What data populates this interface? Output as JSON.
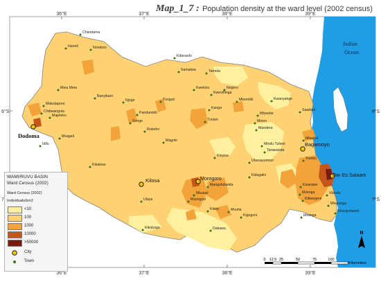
{
  "title": {
    "code": "Map_1_7 :",
    "text": "Population density at the ward level (2002 census)"
  },
  "ticks": {
    "lon_top": [
      "36°E",
      "37°E",
      "38°E",
      "39°E"
    ],
    "lon_bottom": [
      "36°E",
      "37°E",
      "38°E",
      "39°E"
    ],
    "lat_left": [
      "6°S",
      "7°S"
    ],
    "lat_right": [
      "6°S",
      "7°S"
    ]
  },
  "legend": {
    "basin": "WAMI/RUVU BASIN",
    "census": "Ward Census (2002)",
    "subtitle": "Ward Census (2002)",
    "unit": "Individuals/km2",
    "classes": [
      {
        "label": "<10",
        "color": "#fff0a0"
      },
      {
        "label": "100",
        "color": "#fed272"
      },
      {
        "label": "1000",
        "color": "#f2a43a"
      },
      {
        "label": "10000",
        "color": "#c4561a"
      },
      {
        "label": ">50000",
        "color": "#7a1a10"
      }
    ],
    "city_label": "City",
    "town_label": "Town"
  },
  "sea": {
    "line1": "Indian",
    "line2": "Ocean"
  },
  "scale": {
    "ticks": [
      "0",
      "12.5",
      "25",
      "50",
      "75",
      "100"
    ],
    "unit": "Kilometers"
  },
  "north_label": "N",
  "cities": [
    {
      "name": "Dodoma"
    },
    {
      "name": "Kilosa"
    },
    {
      "name": "Morogoro"
    },
    {
      "name": "Bagamoyo"
    },
    {
      "name": "Dar Es Salaam"
    }
  ],
  "towns": [
    {
      "name": "Chandama"
    },
    {
      "name": "Nondoto"
    },
    {
      "name": "Haneti"
    },
    {
      "name": "Kiberashi"
    },
    {
      "name": "Samatwa"
    },
    {
      "name": "Tamota"
    },
    {
      "name": "Meia Meia"
    },
    {
      "name": "Banyibani"
    },
    {
      "name": "Kwekivu"
    },
    {
      "name": "Negero"
    },
    {
      "name": "Kwevihinga"
    },
    {
      "name": "Mkembili"
    },
    {
      "name": "Kwanyange"
    },
    {
      "name": "Makutapora"
    },
    {
      "name": "Chibwangula"
    },
    {
      "name": "Njoge"
    },
    {
      "name": "Tunguli"
    },
    {
      "name": "Kanga"
    },
    {
      "name": "Mbwebe"
    },
    {
      "name": "Saadani"
    },
    {
      "name": "Pandambili"
    },
    {
      "name": "Majeleko"
    },
    {
      "name": "Songe"
    },
    {
      "name": "Turiani"
    },
    {
      "name": "Miono"
    },
    {
      "name": "Mandera"
    },
    {
      "name": "Rubeho"
    },
    {
      "name": "Msagali"
    },
    {
      "name": "Idifu"
    },
    {
      "name": "Magole"
    },
    {
      "name": "Mindu Tulieni"
    },
    {
      "name": "Tarawanda"
    },
    {
      "name": "Mkadini"
    },
    {
      "name": "Kibakwe"
    },
    {
      "name": "Kinyisa"
    },
    {
      "name": "Ubenazomozi"
    },
    {
      "name": "Yombo"
    },
    {
      "name": "Kidugallo"
    },
    {
      "name": "Ulaya"
    },
    {
      "name": "Mkulazi"
    },
    {
      "name": "Mangulubwida"
    },
    {
      "name": "Kisarawe"
    },
    {
      "name": "Mzenga"
    },
    {
      "name": "Msongozi"
    },
    {
      "name": "Vikindu"
    },
    {
      "name": "Kibwegere"
    },
    {
      "name": "Mkuranga"
    },
    {
      "name": "Kikeo"
    },
    {
      "name": "Mvuha"
    },
    {
      "name": "Kigogoni"
    },
    {
      "name": "Kikoboga"
    },
    {
      "name": "Dakawa"
    },
    {
      "name": "Msanga"
    },
    {
      "name": "Shungubweni"
    }
  ]
}
